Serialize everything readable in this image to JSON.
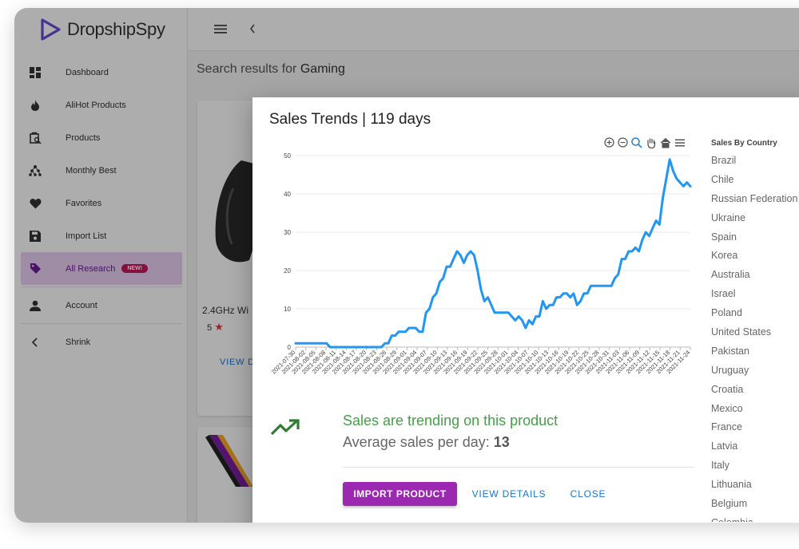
{
  "app": {
    "name": "DropshipSpy"
  },
  "sidebar": {
    "items": [
      {
        "label": "Dashboard",
        "icon": "dashboard-icon"
      },
      {
        "label": "AliHot Products",
        "icon": "flame-icon"
      },
      {
        "label": "Products",
        "icon": "product-search-icon"
      },
      {
        "label": "Monthly Best",
        "icon": "tree-icon"
      },
      {
        "label": "Favorites",
        "icon": "heart-icon"
      },
      {
        "label": "Import List",
        "icon": "save-icon"
      },
      {
        "label": "All Research",
        "icon": "tag-icon",
        "badge": "NEW!",
        "active": true
      },
      {
        "label": "Account",
        "icon": "person-icon"
      },
      {
        "label": "Shrink",
        "icon": "chevron-left-icon"
      }
    ]
  },
  "search": {
    "prefix": "Search results for",
    "term": "Gaming"
  },
  "background_card": {
    "title": "2.4GHz Wi",
    "rating": "5",
    "view_label": "VIEW D"
  },
  "modal": {
    "title": "Sales Trends | 119 days",
    "trend_message": "Sales are trending on this product",
    "avg_label": "Average sales per day:",
    "avg_value": "13",
    "import_label": "IMPORT PRODUCT",
    "details_label": "VIEW DETAILS",
    "close_label": "CLOSE",
    "country_title": "Sales By Country",
    "countries": [
      "Brazil",
      "Chile",
      "Russian Federation",
      "Ukraine",
      "Spain",
      "Korea",
      "Australia",
      "Israel",
      "Poland",
      "United States",
      "Pakistan",
      "Uruguay",
      "Croatia",
      "Mexico",
      "France",
      "Latvia",
      "Italy",
      "Lithuania",
      "Belgium",
      "Colombia"
    ]
  },
  "colors": {
    "accent": "#9c27b0",
    "line": "#2196f3",
    "trend": "#43a047",
    "link": "#1976d2"
  },
  "chart_data": {
    "type": "line",
    "ylim": [
      0,
      50
    ],
    "yticks": [
      0,
      10,
      20,
      30,
      40,
      50
    ],
    "xtick_labels": [
      "2021-07-30",
      "2021-08-02",
      "2021-08-05",
      "2021-08-08",
      "2021-08-11",
      "2021-08-14",
      "2021-08-17",
      "2021-08-20",
      "2021-08-23",
      "2021-08-26",
      "2021-08-29",
      "2021-09-01",
      "2021-09-04",
      "2021-09-07",
      "2021-09-10",
      "2021-09-13",
      "2021-09-16",
      "2021-09-19",
      "2021-09-22",
      "2021-09-25",
      "2021-09-28",
      "2021-10-01",
      "2021-10-04",
      "2021-10-07",
      "2021-10-10",
      "2021-10-13",
      "2021-10-16",
      "2021-10-19",
      "2021-10-22",
      "2021-10-25",
      "2021-10-28",
      "2021-10-31",
      "2021-11-03",
      "2021-11-06",
      "2021-11-09",
      "2021-11-12",
      "2021-11-15",
      "2021-11-18",
      "2021-11-21",
      "2021-11-24"
    ],
    "series": [
      {
        "values": [
          1,
          1,
          1,
          1,
          1,
          1,
          1,
          1,
          1,
          1,
          0,
          0,
          0,
          0,
          0,
          0,
          0,
          0,
          0,
          0,
          0,
          0,
          0,
          0,
          0,
          0,
          1,
          1,
          3,
          3,
          4,
          4,
          4,
          5,
          5,
          5,
          4,
          4,
          9,
          10,
          13,
          14,
          17,
          18,
          21,
          21,
          23,
          25,
          24,
          22,
          24,
          25,
          24,
          20,
          15,
          12,
          13,
          11,
          9,
          9,
          9,
          9,
          9,
          8,
          7,
          8,
          7,
          5,
          7,
          6,
          8,
          8,
          12,
          10,
          11,
          11,
          13,
          13,
          14,
          14,
          13,
          14,
          11,
          12,
          14,
          14,
          16,
          16,
          16,
          16,
          16,
          16,
          16,
          18,
          19,
          23,
          23,
          25,
          25,
          26,
          25,
          28,
          30,
          29,
          31,
          33,
          32,
          39,
          44,
          49,
          46,
          44,
          43,
          42,
          43,
          42
        ]
      }
    ]
  }
}
